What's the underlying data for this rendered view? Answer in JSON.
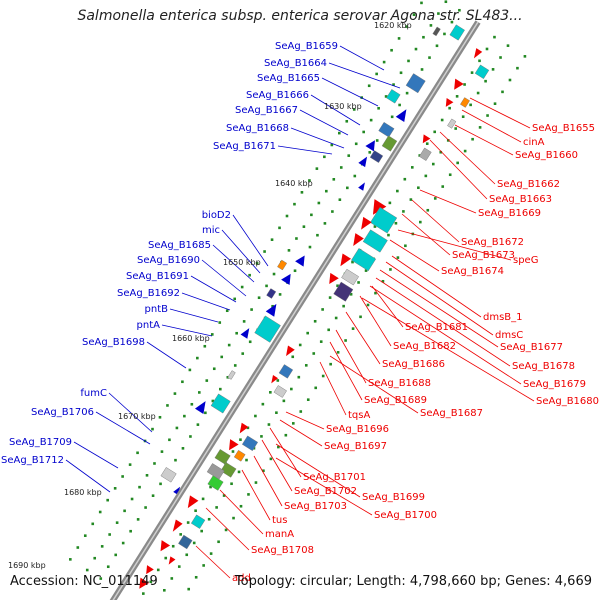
{
  "title": "Salmonella enterica subsp. enterica serovar Agona str. SL483...",
  "footer": {
    "accession": "Accession: NC_011149",
    "topology": "Topology: circular; Length: 4,798,660 bp; Genes: 4,669"
  },
  "colors": {
    "plus_strand": "#0000cc",
    "minus_strand": "#ee0000",
    "backbone": "#888888",
    "tick_dots": "#228822"
  },
  "ticks": [
    {
      "label": "1620 kbp"
    },
    {
      "label": "1630 kbp"
    },
    {
      "label": "1640 kbp"
    },
    {
      "label": "1650 kbp"
    },
    {
      "label": "1660 kbp"
    },
    {
      "label": "1670 kbp"
    },
    {
      "label": "1680 kbp"
    },
    {
      "label": "1690 kbp"
    }
  ],
  "left_labels": [
    "SeAg_B1659",
    "SeAg_B1664",
    "SeAg_B1665",
    "SeAg_B1666",
    "SeAg_B1667",
    "SeAg_B1668",
    "SeAg_B1671",
    "bioD2",
    "mic",
    "SeAg_B1685",
    "SeAg_B1690",
    "SeAg_B1691",
    "SeAg_B1692",
    "pntB",
    "pntA",
    "SeAg_B1698",
    "fumC",
    "SeAg_B1706",
    "SeAg_B1709",
    "SeAg_B1712"
  ],
  "right_labels": [
    "SeAg_B1655",
    "cinA",
    "SeAg_B1660",
    "SeAg_B1662",
    "SeAg_B1663",
    "SeAg_B1669",
    "SeAg_B1672",
    "SeAg_B1673",
    "speG",
    "SeAg_B1674",
    "dmsB_1",
    "dmsC",
    "SeAg_B1681",
    "SeAg_B1677",
    "SeAg_B1682",
    "SeAg_B1678",
    "SeAg_B1686",
    "SeAg_B1679",
    "SeAg_B1688",
    "SeAg_B1680",
    "SeAg_B1689",
    "SeAg_B1687",
    "tqsA",
    "SeAg_B1696",
    "SeAg_B1697",
    "SeAg_B1701",
    "SeAg_B1702",
    "SeAg_B1699",
    "SeAg_B1703",
    "SeAg_B1700",
    "tus",
    "manA",
    "SeAg_B1708",
    "add"
  ]
}
